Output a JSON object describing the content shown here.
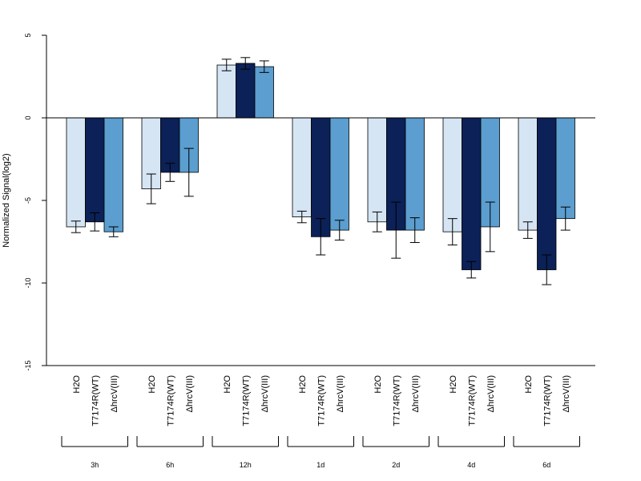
{
  "chart_data": {
    "type": "bar",
    "ylabel": "Normalized Signal(log2)",
    "ylim": [
      -15,
      5
    ],
    "yticks": [
      5,
      0,
      -5,
      -10,
      -15
    ],
    "groups": [
      "3h",
      "6h",
      "12h",
      "1d",
      "2d",
      "4d",
      "6d"
    ],
    "series": [
      {
        "name": "H2O",
        "color": "#d6e5f4",
        "values": [
          -6.6,
          -4.3,
          3.2,
          -6.0,
          -6.3,
          -6.9,
          -6.8
        ],
        "errors": [
          0.35,
          0.9,
          0.35,
          0.35,
          0.6,
          0.8,
          0.5
        ]
      },
      {
        "name": "T7174R(WT)",
        "color": "#0b2157",
        "values": [
          -6.3,
          -3.3,
          3.3,
          -7.2,
          -6.8,
          -9.2,
          -9.2
        ],
        "errors": [
          0.55,
          0.55,
          0.35,
          1.1,
          1.7,
          0.5,
          0.9
        ]
      },
      {
        "name": "ΔhrcV(III)",
        "color": "#5b9ecf",
        "values": [
          -6.9,
          -3.3,
          3.1,
          -6.8,
          -6.8,
          -6.6,
          -6.1
        ],
        "errors": [
          0.3,
          1.45,
          0.35,
          0.6,
          0.75,
          1.5,
          0.7
        ]
      }
    ]
  }
}
